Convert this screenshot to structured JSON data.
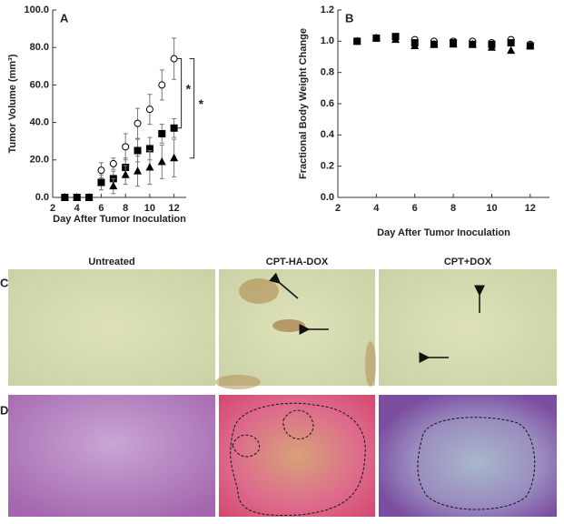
{
  "chart_data": [
    {
      "type": "scatter",
      "panel": "A",
      "xlabel": "Day After Tumor Inoculation",
      "ylabel": "Tumor Volume (mm³)",
      "xlim": [
        2,
        13
      ],
      "xticks": [
        2,
        4,
        6,
        8,
        10,
        12
      ],
      "ylim": [
        0,
        100
      ],
      "yticks": [
        {
          "value": 0,
          "label": "0.0"
        },
        {
          "value": 20,
          "label": "20.0"
        },
        {
          "value": 40,
          "label": "40.0"
        },
        {
          "value": 60,
          "label": "60.0"
        },
        {
          "value": 80,
          "label": "80.0"
        },
        {
          "value": 100,
          "label": "100.0"
        }
      ],
      "x": [
        3,
        4,
        5,
        6,
        7,
        8,
        9,
        10,
        11,
        12
      ],
      "series": [
        {
          "marker": "circle",
          "color": "#000000",
          "values": [
            0,
            0,
            0,
            14.5,
            18,
            27,
            39.5,
            47,
            60,
            74
          ],
          "errors": [
            0,
            0,
            0,
            4,
            3,
            7,
            8,
            8,
            8,
            11
          ]
        },
        {
          "marker": "square",
          "color": "#000000",
          "values": [
            0,
            0,
            0,
            8,
            10,
            16,
            25,
            26,
            34,
            37
          ],
          "errors": [
            0,
            0,
            0,
            4,
            4,
            5,
            6,
            6,
            5,
            5
          ]
        },
        {
          "marker": "triangle",
          "color": "#000000",
          "values": [
            0,
            0,
            0,
            null,
            6,
            12,
            14,
            16,
            19,
            21
          ],
          "errors": [
            0,
            0,
            0,
            null,
            4,
            5,
            8,
            9,
            9,
            10
          ]
        }
      ],
      "annotations": [
        "*",
        "*"
      ]
    },
    {
      "type": "scatter",
      "panel": "B",
      "xlabel": "Day After Tumor Inoculation",
      "ylabel": "Fractional Body Weight Change",
      "xlim": [
        2,
        13
      ],
      "xticks": [
        2,
        4,
        6,
        8,
        10,
        12
      ],
      "ylim": [
        0,
        1.2
      ],
      "yticks": [
        {
          "value": 0,
          "label": "0.0"
        },
        0.2,
        0.4,
        0.6,
        0.8,
        {
          "value": 1,
          "label": "1.0"
        },
        1.2
      ],
      "x": [
        3,
        4,
        5,
        6,
        7,
        8,
        9,
        10,
        11,
        12
      ],
      "series": [
        {
          "marker": "circle",
          "color": "#000000",
          "values": [
            1.0,
            1.02,
            1.02,
            1.01,
            1.0,
            1.0,
            1.0,
            0.99,
            1.01,
            0.98
          ]
        },
        {
          "marker": "square",
          "color": "#000000",
          "values": [
            1.0,
            1.02,
            1.03,
            0.99,
            0.98,
            0.99,
            0.98,
            0.98,
            0.99,
            0.97
          ]
        },
        {
          "marker": "triangle",
          "color": "#000000",
          "values": [
            1.0,
            1.02,
            1.01,
            0.97,
            0.98,
            0.98,
            0.98,
            0.96,
            0.94,
            0.97
          ]
        }
      ]
    }
  ],
  "images": {
    "columns": [
      "Untreated",
      "CPT-HA-DOX",
      "CPT+DOX"
    ],
    "rows": [
      "C",
      "D"
    ]
  }
}
